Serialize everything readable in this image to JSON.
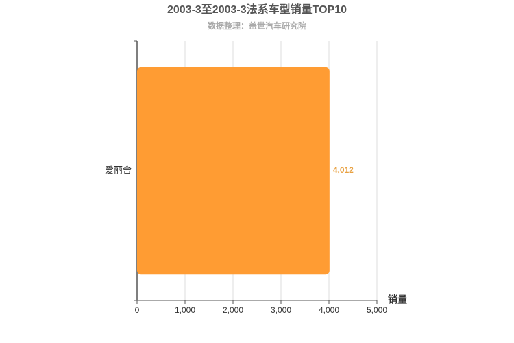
{
  "chart_data": {
    "type": "bar",
    "orientation": "horizontal",
    "title": "2003-3至2003-3法系车型销量TOP10",
    "subtitle": "数据整理：盖世汽车研究院",
    "x_axis_label": "销量",
    "categories": [
      "爱丽舍"
    ],
    "values": [
      4012
    ],
    "value_labels": [
      "4,012"
    ],
    "color": "#ff9c33",
    "xlim": [
      0,
      5000
    ],
    "xticks": [
      0,
      {
        "value": 1000,
        "label": "1,000"
      },
      {
        "value": 2000,
        "label": "2,000"
      },
      {
        "value": 3000,
        "label": "3,000"
      },
      {
        "value": 4000,
        "label": "4,000"
      },
      {
        "value": 5000,
        "label": "5,000"
      }
    ],
    "grid": true
  }
}
